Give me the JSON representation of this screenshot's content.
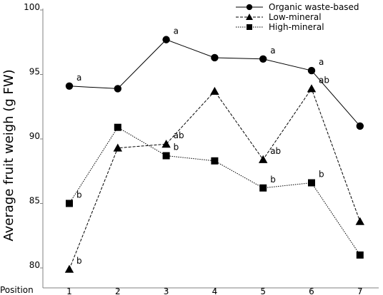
{
  "chart_data": {
    "type": "line",
    "title": "",
    "xlabel": "Position",
    "ylabel": "Average fruit weigh (g FW)",
    "x": [
      1,
      2,
      3,
      4,
      5,
      6,
      7
    ],
    "ylim": [
      79,
      100
    ],
    "yticks": [
      80,
      85,
      90,
      95,
      100
    ],
    "grid": false,
    "legend_position": "top-right",
    "series": [
      {
        "name": "Organic waste-based",
        "marker": "circle",
        "line": "solid",
        "values": [
          94.1,
          93.9,
          97.7,
          96.3,
          96.2,
          95.3,
          91.0
        ],
        "labels": [
          "a",
          "",
          "a",
          "",
          "a",
          "a",
          ""
        ]
      },
      {
        "name": "Low-mineral",
        "marker": "triangle",
        "line": "dashed",
        "values": [
          79.9,
          89.3,
          89.6,
          93.7,
          88.4,
          93.9,
          83.6
        ],
        "labels": [
          "b",
          "",
          "ab",
          "",
          "ab",
          "ab",
          ""
        ]
      },
      {
        "name": "High-mineral",
        "marker": "square",
        "line": "dotted",
        "values": [
          85.0,
          90.9,
          88.7,
          88.3,
          86.2,
          86.6,
          81.0
        ],
        "labels": [
          "b",
          "",
          "b",
          "",
          "b",
          "b",
          ""
        ]
      }
    ],
    "colors": {
      "line": "#000000",
      "axis": "#808080",
      "background": "#ffffff"
    }
  }
}
